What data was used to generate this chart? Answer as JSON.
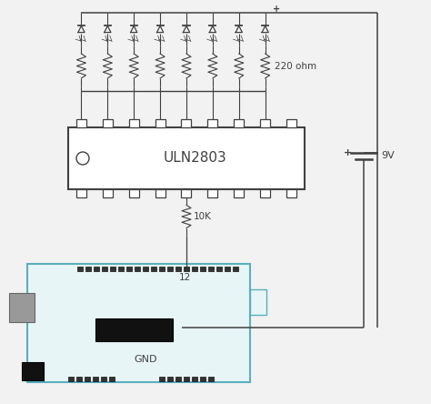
{
  "bg_color": "#f2f2f2",
  "line_color": "#404040",
  "ic_color": "#ffffff",
  "ic_label": "ULN2803",
  "resistor_label_220": "220 ohm",
  "resistor_label_10k": "10K",
  "voltage_label": "9V",
  "pin_label": "12",
  "gnd_label": "GND",
  "plus_label": "+",
  "led_count": 8,
  "n_pins": 9,
  "arduino_border": "#5aafbf",
  "arduino_fill": "#e8f5f7",
  "gray_fill": "#999999",
  "black_fill": "#111111"
}
